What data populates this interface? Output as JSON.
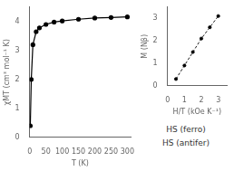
{
  "chart_data": [
    {
      "type": "line",
      "x": [
        2,
        5,
        10,
        20,
        30,
        50,
        75,
        100,
        150,
        200,
        250,
        300
      ],
      "series": [
        {
          "name": "χMT",
          "color": "#000000",
          "marker": "o",
          "line_style": "solid",
          "values": [
            0.4,
            2.0,
            3.2,
            3.65,
            3.78,
            3.9,
            3.98,
            4.02,
            4.08,
            4.12,
            4.14,
            4.16
          ]
        }
      ],
      "x_label": "T (K)",
      "y_label": "χMT (cm³ mol⁻¹ K)",
      "xlim": [
        0,
        310
      ],
      "xticks": [
        0,
        50,
        100,
        150,
        200,
        250,
        300
      ],
      "ylim": [
        0.0,
        4.5
      ],
      "yticks": [
        0,
        1,
        2,
        3,
        4
      ],
      "grid": false,
      "annotations": [
        "HS (ferro)",
        "HS (antifer)"
      ]
    },
    {
      "type": "line",
      "x": [
        0.5,
        1.0,
        1.5,
        2.0,
        2.5,
        3.0
      ],
      "series": [
        {
          "name": "M",
          "color": "#000000",
          "marker": "o",
          "line_style": "dashed",
          "values": [
            0.3,
            0.9,
            1.5,
            2.1,
            2.6,
            3.1
          ]
        }
      ],
      "x_label": "H/T (kOe K⁻¹)",
      "y_label": "M (Nβ)",
      "xlim": [
        0,
        3.5
      ],
      "xticks": [
        0,
        1,
        2,
        3
      ],
      "ylim": [
        0,
        3.5
      ],
      "yticks": [
        0,
        1,
        2,
        3
      ],
      "grid": false
    }
  ]
}
